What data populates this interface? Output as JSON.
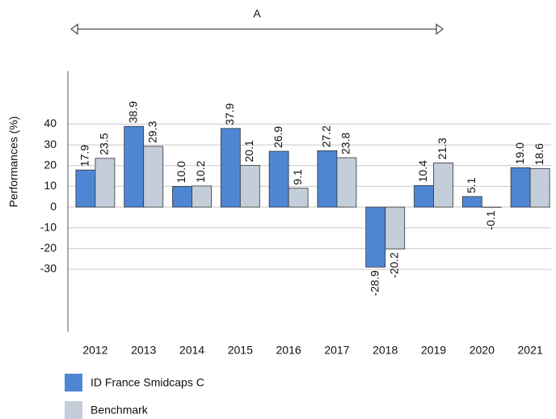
{
  "chart_data": {
    "type": "bar",
    "annotation": "A",
    "y_label": "Performances (%)",
    "categories": [
      "2012",
      "2013",
      "2014",
      "2015",
      "2016",
      "2017",
      "2018",
      "2019",
      "2020",
      "2021"
    ],
    "series": [
      {
        "name": "ID France Smidcaps  C",
        "color": "#4f86d4",
        "values": [
          17.9,
          38.9,
          10.0,
          37.9,
          26.9,
          27.2,
          -28.9,
          10.4,
          5.1,
          19.0
        ],
        "value_labels": [
          "17.9",
          "38.9",
          "10.0",
          "37.9",
          "26.9",
          "27.2",
          "-28.9",
          "10.4",
          "5.1",
          "19.0"
        ]
      },
      {
        "name": "Benchmark",
        "color": "#c4cedb",
        "values": [
          23.5,
          29.3,
          10.2,
          20.1,
          9.1,
          23.8,
          -20.2,
          21.3,
          -0.1,
          18.6
        ],
        "value_labels": [
          "23.5",
          "29.3",
          "10.2",
          "20.1",
          "9.1",
          "23.8",
          "-20.2",
          "21.3",
          "-0.1",
          "18.6"
        ]
      }
    ],
    "ylim": [
      -60,
      65.5
    ],
    "yticks": [
      -30,
      -20,
      -10,
      0,
      10,
      20,
      30,
      40
    ],
    "grid": true,
    "legend": "bottom-left"
  }
}
